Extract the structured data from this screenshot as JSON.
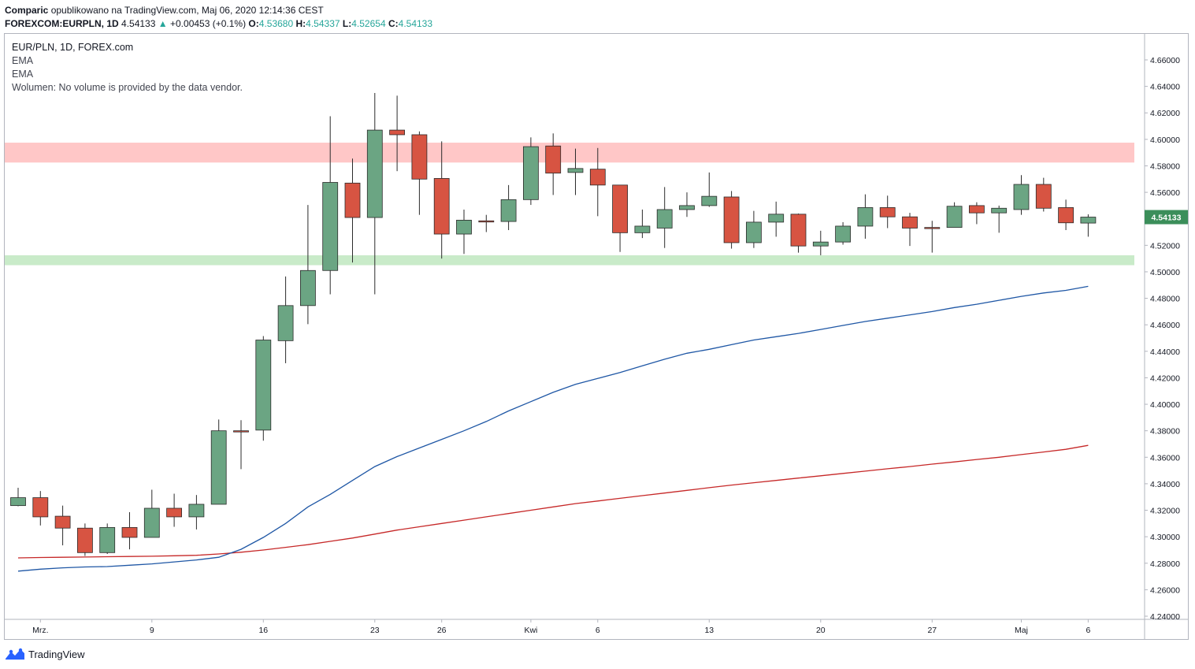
{
  "header": {
    "author": "Comparic",
    "published": "opublikowano na TradingView.com, Maj 06, 2020 12:14:36 CEST",
    "symbol": "FOREXCOM:EURPLN, 1D",
    "last": "4.54133",
    "arrow": "▲",
    "change": "+0.00453 (+0.1%)",
    "o_label": "O:",
    "o_val": "4.53680",
    "h_label": "H:",
    "h_val": "4.54337",
    "l_label": "L:",
    "l_val": "4.52654",
    "c_label": "C:",
    "c_val": "4.54133"
  },
  "legend": {
    "title": "EUR/PLN, 1D, FOREX.com",
    "ema1": "EMA",
    "ema2": "EMA",
    "volume": "Wolumen: No volume is provided by the data vendor."
  },
  "footer": {
    "brand": "TradingView"
  },
  "colors": {
    "up": "#6ba583",
    "down": "#d75442",
    "ema_fast": "#1f57a5",
    "ema_slow": "#c62828",
    "resistance_zone": "#ffc7c7",
    "support_zone": "#c9ebc9",
    "price_label": "#3b8e5a"
  },
  "chart_data": {
    "type": "candlestick",
    "ylim": [
      4.235,
      4.67
    ],
    "y_ticks": [
      "4.66000",
      "4.64000",
      "4.62000",
      "4.60000",
      "4.58000",
      "4.56000",
      "4.54000",
      "4.52000",
      "4.50000",
      "4.48000",
      "4.46000",
      "4.44000",
      "4.42000",
      "4.40000",
      "4.38000",
      "4.36000",
      "4.34000",
      "4.32000",
      "4.30000",
      "4.28000",
      "4.26000",
      "4.24000"
    ],
    "x_ticks": [
      {
        "label": "Mrz.",
        "index": 1
      },
      {
        "label": "9",
        "index": 6
      },
      {
        "label": "16",
        "index": 11
      },
      {
        "label": "23",
        "index": 16
      },
      {
        "label": "26",
        "index": 19
      },
      {
        "label": "Kwi",
        "index": 23
      },
      {
        "label": "6",
        "index": 26
      },
      {
        "label": "13",
        "index": 31
      },
      {
        "label": "20",
        "index": 36
      },
      {
        "label": "27",
        "index": 41
      },
      {
        "label": "Maj",
        "index": 45
      },
      {
        "label": "6",
        "index": 48
      }
    ],
    "current_price_label": "4.54133",
    "zones": [
      {
        "name": "resistance",
        "from": 4.5825,
        "to": 4.5975
      },
      {
        "name": "support",
        "from": 4.505,
        "to": 4.5125
      }
    ],
    "candles": [
      {
        "o": 4.3235,
        "h": 4.337,
        "l": 4.323,
        "c": 4.3295
      },
      {
        "o": 4.3295,
        "h": 4.3345,
        "l": 4.3085,
        "c": 4.315
      },
      {
        "o": 4.3155,
        "h": 4.3235,
        "l": 4.2935,
        "c": 4.3065
      },
      {
        "o": 4.3065,
        "h": 4.31,
        "l": 4.2855,
        "c": 4.288
      },
      {
        "o": 4.288,
        "h": 4.31,
        "l": 4.287,
        "c": 4.307
      },
      {
        "o": 4.307,
        "h": 4.3185,
        "l": 4.2905,
        "c": 4.2995
      },
      {
        "o": 4.2995,
        "h": 4.3355,
        "l": 4.2995,
        "c": 4.3215
      },
      {
        "o": 4.3215,
        "h": 4.3325,
        "l": 4.3075,
        "c": 4.315
      },
      {
        "o": 4.315,
        "h": 4.3315,
        "l": 4.3055,
        "c": 4.3245
      },
      {
        "o": 4.3245,
        "h": 4.3885,
        "l": 4.3245,
        "c": 4.38
      },
      {
        "o": 4.38,
        "h": 4.388,
        "l": 4.351,
        "c": 4.3795
      },
      {
        "o": 4.3805,
        "h": 4.4515,
        "l": 4.3725,
        "c": 4.4485
      },
      {
        "o": 4.448,
        "h": 4.4965,
        "l": 4.431,
        "c": 4.4745
      },
      {
        "o": 4.4745,
        "h": 4.5505,
        "l": 4.4605,
        "c": 4.501
      },
      {
        "o": 4.501,
        "h": 4.6175,
        "l": 4.483,
        "c": 4.5675
      },
      {
        "o": 4.567,
        "h": 4.5855,
        "l": 4.507,
        "c": 4.541
      },
      {
        "o": 4.541,
        "h": 4.635,
        "l": 4.483,
        "c": 4.607
      },
      {
        "o": 4.607,
        "h": 4.633,
        "l": 4.576,
        "c": 4.6035
      },
      {
        "o": 4.6035,
        "h": 4.606,
        "l": 4.543,
        "c": 4.57
      },
      {
        "o": 4.5705,
        "h": 4.5985,
        "l": 4.51,
        "c": 4.5285
      },
      {
        "o": 4.5285,
        "h": 4.547,
        "l": 4.5135,
        "c": 4.539
      },
      {
        "o": 4.5385,
        "h": 4.543,
        "l": 4.53,
        "c": 4.538
      },
      {
        "o": 4.538,
        "h": 4.5655,
        "l": 4.5315,
        "c": 4.5545
      },
      {
        "o": 4.5545,
        "h": 4.6015,
        "l": 4.5505,
        "c": 4.5945
      },
      {
        "o": 4.595,
        "h": 4.6045,
        "l": 4.558,
        "c": 4.5745
      },
      {
        "o": 4.575,
        "h": 4.593,
        "l": 4.558,
        "c": 4.578
      },
      {
        "o": 4.5775,
        "h": 4.5935,
        "l": 4.542,
        "c": 4.5655
      },
      {
        "o": 4.5655,
        "h": 4.5655,
        "l": 4.515,
        "c": 4.5295
      },
      {
        "o": 4.5295,
        "h": 4.547,
        "l": 4.5255,
        "c": 4.5345
      },
      {
        "o": 4.533,
        "h": 4.564,
        "l": 4.518,
        "c": 4.547
      },
      {
        "o": 4.547,
        "h": 4.56,
        "l": 4.5415,
        "c": 4.55
      },
      {
        "o": 4.55,
        "h": 4.575,
        "l": 4.549,
        "c": 4.557
      },
      {
        "o": 4.5565,
        "h": 4.561,
        "l": 4.5175,
        "c": 4.522
      },
      {
        "o": 4.522,
        "h": 4.546,
        "l": 4.518,
        "c": 4.5375
      },
      {
        "o": 4.5375,
        "h": 4.553,
        "l": 4.5265,
        "c": 4.5435
      },
      {
        "o": 4.5435,
        "h": 4.544,
        "l": 4.5145,
        "c": 4.5195
      },
      {
        "o": 4.5195,
        "h": 4.531,
        "l": 4.5125,
        "c": 4.5225
      },
      {
        "o": 4.5225,
        "h": 4.5375,
        "l": 4.5205,
        "c": 4.5345
      },
      {
        "o": 4.5345,
        "h": 4.5585,
        "l": 4.525,
        "c": 4.5485
      },
      {
        "o": 4.5485,
        "h": 4.5575,
        "l": 4.533,
        "c": 4.5415
      },
      {
        "o": 4.5415,
        "h": 4.5445,
        "l": 4.5195,
        "c": 4.533
      },
      {
        "o": 4.5335,
        "h": 4.5385,
        "l": 4.5145,
        "c": 4.533
      },
      {
        "o": 4.5335,
        "h": 4.5525,
        "l": 4.5335,
        "c": 4.5495
      },
      {
        "o": 4.55,
        "h": 4.5525,
        "l": 4.536,
        "c": 4.5445
      },
      {
        "o": 4.5445,
        "h": 4.55,
        "l": 4.5295,
        "c": 4.548
      },
      {
        "o": 4.547,
        "h": 4.573,
        "l": 4.543,
        "c": 4.566
      },
      {
        "o": 4.566,
        "h": 4.571,
        "l": 4.5455,
        "c": 4.548
      },
      {
        "o": 4.5485,
        "h": 4.5545,
        "l": 4.5315,
        "c": 4.537
      },
      {
        "o": 4.5368,
        "h": 4.5434,
        "l": 4.5265,
        "c": 4.5413
      }
    ],
    "ema_fast": [
      4.274,
      4.2755,
      4.2765,
      4.2772,
      4.2775,
      4.2785,
      4.2795,
      4.281,
      4.2825,
      4.2845,
      4.2905,
      4.2995,
      4.31,
      4.3225,
      4.332,
      4.3425,
      4.353,
      4.3605,
      4.367,
      4.3735,
      4.38,
      4.387,
      4.395,
      4.402,
      4.409,
      4.415,
      4.4195,
      4.424,
      4.429,
      4.434,
      4.4385,
      4.4415,
      4.445,
      4.4485,
      4.451,
      4.4535,
      4.4565,
      4.4595,
      4.4625,
      4.465,
      4.4675,
      4.47,
      4.473,
      4.4755,
      4.4785,
      4.4815,
      4.484,
      4.486,
      4.489
    ],
    "ema_slow": [
      4.284,
      4.2843,
      4.2845,
      4.2847,
      4.2849,
      4.2851,
      4.2853,
      4.2856,
      4.286,
      4.287,
      4.2883,
      4.29,
      4.292,
      4.294,
      4.2965,
      4.299,
      4.302,
      4.305,
      4.3075,
      4.31,
      4.3125,
      4.315,
      4.3175,
      4.32,
      4.3225,
      4.325,
      4.327,
      4.329,
      4.331,
      4.333,
      4.335,
      4.337,
      4.339,
      4.3408,
      4.3425,
      4.3443,
      4.346,
      4.3478,
      4.3495,
      4.3513,
      4.353,
      4.3548,
      4.3565,
      4.3583,
      4.36,
      4.362,
      4.364,
      4.366,
      4.369
    ]
  }
}
